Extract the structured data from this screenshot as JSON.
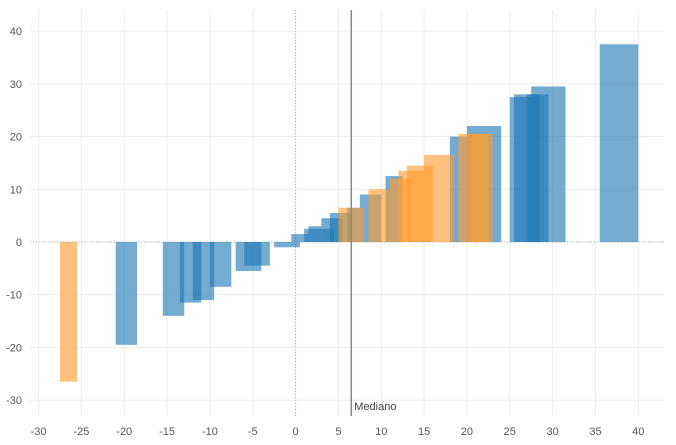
{
  "chart_data": {
    "type": "bar",
    "title": "",
    "xlabel": "",
    "ylabel": "",
    "xlim": [
      -31,
      43
    ],
    "ylim": [
      -33,
      44
    ],
    "x_ticks": [
      -30,
      -25,
      -20,
      -15,
      -10,
      -5,
      0,
      5,
      10,
      15,
      20,
      25,
      30,
      35,
      40
    ],
    "y_ticks": [
      -30,
      -20,
      -10,
      0,
      10,
      20,
      30,
      40
    ],
    "grid": true,
    "colors": {
      "blue": "#1f77b4",
      "orange": "#ff9d2e",
      "axis_line": "#888888",
      "zero_line": "#b0b0b0",
      "grid": "#ececec"
    },
    "reference_line": {
      "x": 6.5,
      "label": "Mediano"
    },
    "series": [
      {
        "color_key": "blue",
        "bars": [
          {
            "x0": -21.0,
            "x1": -18.5,
            "y": -19.5
          },
          {
            "x0": -15.5,
            "x1": -13.0,
            "y": -14.0
          },
          {
            "x0": -13.5,
            "x1": -11.0,
            "y": -11.5
          },
          {
            "x0": -12.0,
            "x1": -9.5,
            "y": -11.0
          },
          {
            "x0": -10.0,
            "x1": -7.5,
            "y": -8.5
          },
          {
            "x0": -7.0,
            "x1": -4.0,
            "y": -5.5
          },
          {
            "x0": -6.0,
            "x1": -3.0,
            "y": -4.5
          },
          {
            "x0": -2.5,
            "x1": 0.5,
            "y": -1.0
          },
          {
            "x0": -0.5,
            "x1": 1.5,
            "y": 1.5
          },
          {
            "x0": 1.0,
            "x1": 4.5,
            "y": 2.5
          },
          {
            "x0": 1.5,
            "x1": 3.0,
            "y": 3.0
          },
          {
            "x0": 3.0,
            "x1": 5.5,
            "y": 4.5
          },
          {
            "x0": 4.0,
            "x1": 6.5,
            "y": 5.5
          },
          {
            "x0": 6.0,
            "x1": 7.5,
            "y": 6.5
          },
          {
            "x0": 7.5,
            "x1": 10.0,
            "y": 9.0
          },
          {
            "x0": 10.5,
            "x1": 12.5,
            "y": 12.5
          },
          {
            "x0": 18.0,
            "x1": 20.5,
            "y": 20.0
          },
          {
            "x0": 20.0,
            "x1": 24.0,
            "y": 22.0
          },
          {
            "x0": 25.0,
            "x1": 27.5,
            "y": 27.5
          },
          {
            "x0": 25.5,
            "x1": 28.5,
            "y": 28.0
          },
          {
            "x0": 27.0,
            "x1": 29.5,
            "y": 28.0
          },
          {
            "x0": 27.5,
            "x1": 31.5,
            "y": 29.5
          },
          {
            "x0": 35.5,
            "x1": 40.0,
            "y": 37.5
          }
        ]
      },
      {
        "color_key": "orange",
        "bars": [
          {
            "x0": -27.5,
            "x1": -25.5,
            "y": -26.5
          },
          {
            "x0": 5.0,
            "x1": 8.0,
            "y": 6.5
          },
          {
            "x0": 8.5,
            "x1": 11.0,
            "y": 10.0
          },
          {
            "x0": 11.0,
            "x1": 13.5,
            "y": 12.0
          },
          {
            "x0": 12.0,
            "x1": 15.0,
            "y": 13.5
          },
          {
            "x0": 13.0,
            "x1": 16.0,
            "y": 14.5
          },
          {
            "x0": 15.0,
            "x1": 18.5,
            "y": 16.5
          },
          {
            "x0": 19.0,
            "x1": 22.5,
            "y": 20.5
          },
          {
            "x0": 20.0,
            "x1": 23.0,
            "y": 20.5
          }
        ]
      }
    ]
  }
}
